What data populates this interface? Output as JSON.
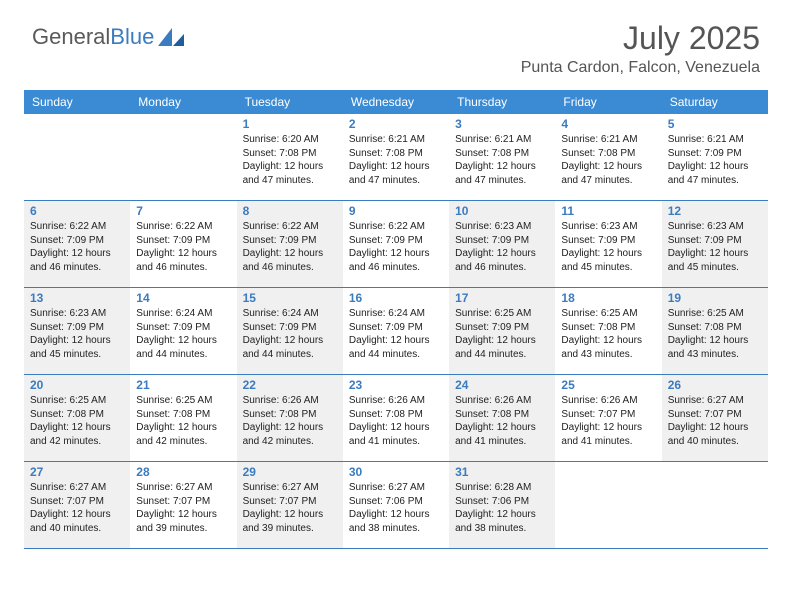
{
  "brand": {
    "part1": "General",
    "part2": "Blue"
  },
  "header": {
    "month_title": "July 2025",
    "location": "Punta Cardon, Falcon, Venezuela"
  },
  "colors": {
    "header_bg": "#3b8bd4",
    "accent": "#3b7bbf",
    "shade_bg": "#f0f0f0",
    "text": "#222222",
    "page_bg": "#ffffff",
    "title_color": "#555555"
  },
  "typography": {
    "month_title_fontsize": 32,
    "location_fontsize": 16,
    "dayheader_fontsize": 12,
    "daynum_fontsize": 12,
    "detail_fontsize": 10
  },
  "day_labels": [
    "Sunday",
    "Monday",
    "Tuesday",
    "Wednesday",
    "Thursday",
    "Friday",
    "Saturday"
  ],
  "weeks": [
    [
      {
        "num": "",
        "sunrise": "",
        "sunset": "",
        "daylight": "",
        "shade": false
      },
      {
        "num": "",
        "sunrise": "",
        "sunset": "",
        "daylight": "",
        "shade": false
      },
      {
        "num": "1",
        "sunrise": "Sunrise: 6:20 AM",
        "sunset": "Sunset: 7:08 PM",
        "daylight": "Daylight: 12 hours and 47 minutes.",
        "shade": false
      },
      {
        "num": "2",
        "sunrise": "Sunrise: 6:21 AM",
        "sunset": "Sunset: 7:08 PM",
        "daylight": "Daylight: 12 hours and 47 minutes.",
        "shade": false
      },
      {
        "num": "3",
        "sunrise": "Sunrise: 6:21 AM",
        "sunset": "Sunset: 7:08 PM",
        "daylight": "Daylight: 12 hours and 47 minutes.",
        "shade": false
      },
      {
        "num": "4",
        "sunrise": "Sunrise: 6:21 AM",
        "sunset": "Sunset: 7:08 PM",
        "daylight": "Daylight: 12 hours and 47 minutes.",
        "shade": false
      },
      {
        "num": "5",
        "sunrise": "Sunrise: 6:21 AM",
        "sunset": "Sunset: 7:09 PM",
        "daylight": "Daylight: 12 hours and 47 minutes.",
        "shade": false
      }
    ],
    [
      {
        "num": "6",
        "sunrise": "Sunrise: 6:22 AM",
        "sunset": "Sunset: 7:09 PM",
        "daylight": "Daylight: 12 hours and 46 minutes.",
        "shade": true
      },
      {
        "num": "7",
        "sunrise": "Sunrise: 6:22 AM",
        "sunset": "Sunset: 7:09 PM",
        "daylight": "Daylight: 12 hours and 46 minutes.",
        "shade": false
      },
      {
        "num": "8",
        "sunrise": "Sunrise: 6:22 AM",
        "sunset": "Sunset: 7:09 PM",
        "daylight": "Daylight: 12 hours and 46 minutes.",
        "shade": true
      },
      {
        "num": "9",
        "sunrise": "Sunrise: 6:22 AM",
        "sunset": "Sunset: 7:09 PM",
        "daylight": "Daylight: 12 hours and 46 minutes.",
        "shade": false
      },
      {
        "num": "10",
        "sunrise": "Sunrise: 6:23 AM",
        "sunset": "Sunset: 7:09 PM",
        "daylight": "Daylight: 12 hours and 46 minutes.",
        "shade": true
      },
      {
        "num": "11",
        "sunrise": "Sunrise: 6:23 AM",
        "sunset": "Sunset: 7:09 PM",
        "daylight": "Daylight: 12 hours and 45 minutes.",
        "shade": false
      },
      {
        "num": "12",
        "sunrise": "Sunrise: 6:23 AM",
        "sunset": "Sunset: 7:09 PM",
        "daylight": "Daylight: 12 hours and 45 minutes.",
        "shade": true
      }
    ],
    [
      {
        "num": "13",
        "sunrise": "Sunrise: 6:23 AM",
        "sunset": "Sunset: 7:09 PM",
        "daylight": "Daylight: 12 hours and 45 minutes.",
        "shade": true
      },
      {
        "num": "14",
        "sunrise": "Sunrise: 6:24 AM",
        "sunset": "Sunset: 7:09 PM",
        "daylight": "Daylight: 12 hours and 44 minutes.",
        "shade": false
      },
      {
        "num": "15",
        "sunrise": "Sunrise: 6:24 AM",
        "sunset": "Sunset: 7:09 PM",
        "daylight": "Daylight: 12 hours and 44 minutes.",
        "shade": true
      },
      {
        "num": "16",
        "sunrise": "Sunrise: 6:24 AM",
        "sunset": "Sunset: 7:09 PM",
        "daylight": "Daylight: 12 hours and 44 minutes.",
        "shade": false
      },
      {
        "num": "17",
        "sunrise": "Sunrise: 6:25 AM",
        "sunset": "Sunset: 7:09 PM",
        "daylight": "Daylight: 12 hours and 44 minutes.",
        "shade": true
      },
      {
        "num": "18",
        "sunrise": "Sunrise: 6:25 AM",
        "sunset": "Sunset: 7:08 PM",
        "daylight": "Daylight: 12 hours and 43 minutes.",
        "shade": false
      },
      {
        "num": "19",
        "sunrise": "Sunrise: 6:25 AM",
        "sunset": "Sunset: 7:08 PM",
        "daylight": "Daylight: 12 hours and 43 minutes.",
        "shade": true
      }
    ],
    [
      {
        "num": "20",
        "sunrise": "Sunrise: 6:25 AM",
        "sunset": "Sunset: 7:08 PM",
        "daylight": "Daylight: 12 hours and 42 minutes.",
        "shade": true
      },
      {
        "num": "21",
        "sunrise": "Sunrise: 6:25 AM",
        "sunset": "Sunset: 7:08 PM",
        "daylight": "Daylight: 12 hours and 42 minutes.",
        "shade": false
      },
      {
        "num": "22",
        "sunrise": "Sunrise: 6:26 AM",
        "sunset": "Sunset: 7:08 PM",
        "daylight": "Daylight: 12 hours and 42 minutes.",
        "shade": true
      },
      {
        "num": "23",
        "sunrise": "Sunrise: 6:26 AM",
        "sunset": "Sunset: 7:08 PM",
        "daylight": "Daylight: 12 hours and 41 minutes.",
        "shade": false
      },
      {
        "num": "24",
        "sunrise": "Sunrise: 6:26 AM",
        "sunset": "Sunset: 7:08 PM",
        "daylight": "Daylight: 12 hours and 41 minutes.",
        "shade": true
      },
      {
        "num": "25",
        "sunrise": "Sunrise: 6:26 AM",
        "sunset": "Sunset: 7:07 PM",
        "daylight": "Daylight: 12 hours and 41 minutes.",
        "shade": false
      },
      {
        "num": "26",
        "sunrise": "Sunrise: 6:27 AM",
        "sunset": "Sunset: 7:07 PM",
        "daylight": "Daylight: 12 hours and 40 minutes.",
        "shade": true
      }
    ],
    [
      {
        "num": "27",
        "sunrise": "Sunrise: 6:27 AM",
        "sunset": "Sunset: 7:07 PM",
        "daylight": "Daylight: 12 hours and 40 minutes.",
        "shade": true
      },
      {
        "num": "28",
        "sunrise": "Sunrise: 6:27 AM",
        "sunset": "Sunset: 7:07 PM",
        "daylight": "Daylight: 12 hours and 39 minutes.",
        "shade": false
      },
      {
        "num": "29",
        "sunrise": "Sunrise: 6:27 AM",
        "sunset": "Sunset: 7:07 PM",
        "daylight": "Daylight: 12 hours and 39 minutes.",
        "shade": true
      },
      {
        "num": "30",
        "sunrise": "Sunrise: 6:27 AM",
        "sunset": "Sunset: 7:06 PM",
        "daylight": "Daylight: 12 hours and 38 minutes.",
        "shade": false
      },
      {
        "num": "31",
        "sunrise": "Sunrise: 6:28 AM",
        "sunset": "Sunset: 7:06 PM",
        "daylight": "Daylight: 12 hours and 38 minutes.",
        "shade": true
      },
      {
        "num": "",
        "sunrise": "",
        "sunset": "",
        "daylight": "",
        "shade": false
      },
      {
        "num": "",
        "sunrise": "",
        "sunset": "",
        "daylight": "",
        "shade": false
      }
    ]
  ]
}
